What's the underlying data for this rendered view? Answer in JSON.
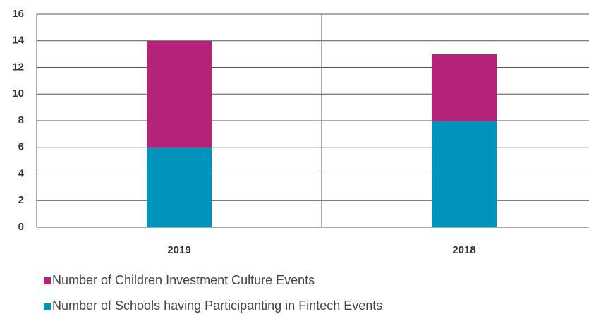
{
  "chart_data": {
    "type": "stacked-bar",
    "categories": [
      "2019",
      "2018"
    ],
    "series": [
      {
        "name": "Number of Children Investment Culture Events",
        "color": "#b5227a",
        "values": [
          8,
          5
        ]
      },
      {
        "name": "Number of Schools having Participanting in Fintech Events",
        "color": "#0094bc",
        "values": [
          6,
          8
        ]
      }
    ],
    "ylim": [
      0,
      16
    ],
    "yticks": [
      0,
      2,
      4,
      6,
      8,
      10,
      12,
      14,
      16
    ],
    "grid": true
  }
}
